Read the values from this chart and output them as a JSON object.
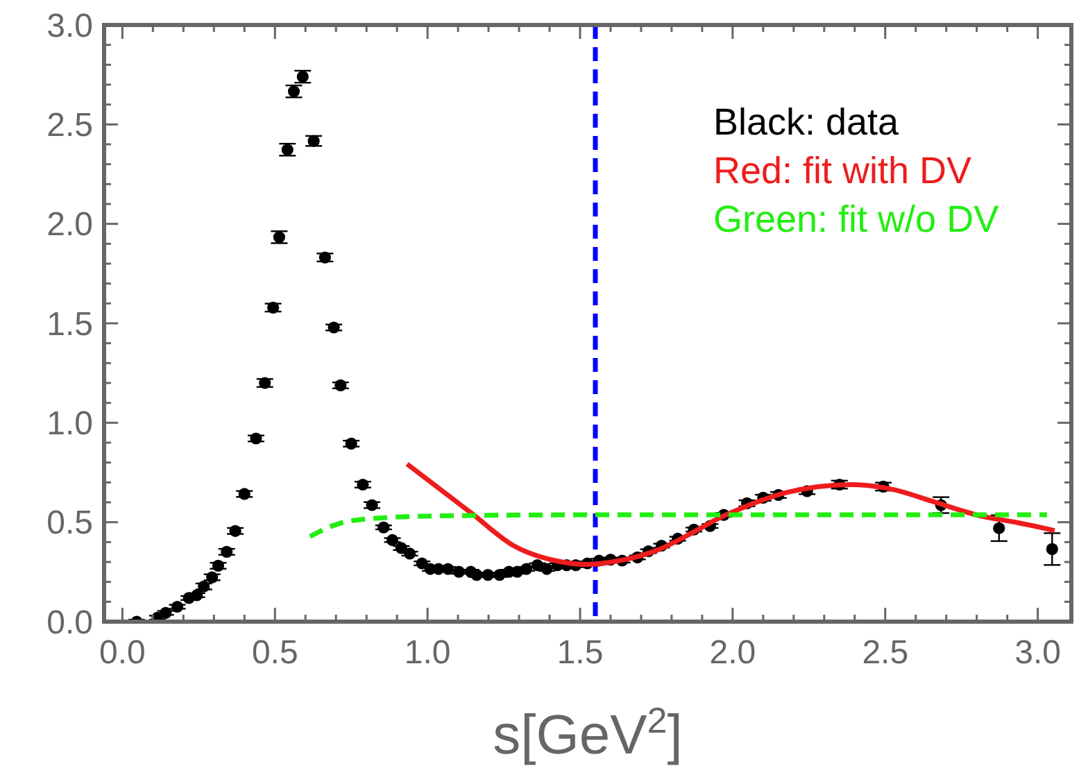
{
  "chart_data": {
    "type": "scatter",
    "xlabel": "s[GeV$^{2}$]",
    "xlim": [
      -0.06,
      3.11
    ],
    "ylim": [
      0,
      3
    ],
    "xticks": [
      {
        "value": 0,
        "label": "0.0"
      },
      {
        "value": 0.1,
        "label": null
      },
      {
        "value": 0.2,
        "label": null
      },
      {
        "value": 0.3,
        "label": null
      },
      {
        "value": 0.4,
        "label": null
      },
      {
        "value": 0.5,
        "label": "0.5"
      },
      {
        "value": 0.6,
        "label": null
      },
      {
        "value": 0.7,
        "label": null
      },
      {
        "value": 0.8,
        "label": null
      },
      {
        "value": 0.9,
        "label": null
      },
      {
        "value": 1,
        "label": "1.0"
      },
      {
        "value": 1.1,
        "label": null
      },
      {
        "value": 1.2,
        "label": null
      },
      {
        "value": 1.3,
        "label": null
      },
      {
        "value": 1.4,
        "label": null
      },
      {
        "value": 1.5,
        "label": "1.5"
      },
      {
        "value": 1.6,
        "label": null
      },
      {
        "value": 1.7,
        "label": null
      },
      {
        "value": 1.8,
        "label": null
      },
      {
        "value": 1.9,
        "label": null
      },
      {
        "value": 2,
        "label": "2.0"
      },
      {
        "value": 2.1,
        "label": null
      },
      {
        "value": 2.2,
        "label": null
      },
      {
        "value": 2.3,
        "label": null
      },
      {
        "value": 2.4,
        "label": null
      },
      {
        "value": 2.5,
        "label": "2.5"
      },
      {
        "value": 2.6,
        "label": null
      },
      {
        "value": 2.7,
        "label": null
      },
      {
        "value": 2.8,
        "label": null
      },
      {
        "value": 2.9,
        "label": null
      },
      {
        "value": 3,
        "label": "3.0"
      }
    ],
    "yticks": [
      {
        "value": 0,
        "label": "0.0"
      },
      {
        "value": 0.1,
        "label": null
      },
      {
        "value": 0.2,
        "label": null
      },
      {
        "value": 0.3,
        "label": null
      },
      {
        "value": 0.4,
        "label": null
      },
      {
        "value": 0.5,
        "label": "0.5"
      },
      {
        "value": 0.6,
        "label": null
      },
      {
        "value": 0.7,
        "label": null
      },
      {
        "value": 0.8,
        "label": null
      },
      {
        "value": 0.9,
        "label": null
      },
      {
        "value": 1,
        "label": "1.0"
      },
      {
        "value": 1.1,
        "label": null
      },
      {
        "value": 1.2,
        "label": null
      },
      {
        "value": 1.3,
        "label": null
      },
      {
        "value": 1.4,
        "label": null
      },
      {
        "value": 1.5,
        "label": "1.5"
      },
      {
        "value": 1.6,
        "label": null
      },
      {
        "value": 1.7,
        "label": null
      },
      {
        "value": 1.8,
        "label": null
      },
      {
        "value": 1.9,
        "label": null
      },
      {
        "value": 2,
        "label": "2.0"
      },
      {
        "value": 2.1,
        "label": null
      },
      {
        "value": 2.2,
        "label": null
      },
      {
        "value": 2.3,
        "label": null
      },
      {
        "value": 2.4,
        "label": null
      },
      {
        "value": 2.5,
        "label": "2.5"
      },
      {
        "value": 2.6,
        "label": null
      },
      {
        "value": 2.7,
        "label": null
      },
      {
        "value": 2.8,
        "label": null
      },
      {
        "value": 2.9,
        "label": null
      },
      {
        "value": 3,
        "label": "3.0"
      }
    ],
    "legend": "top right",
    "ref_lines": [
      {
        "axis": "x",
        "value": 1.55,
        "label": null,
        "color": "#0000ff",
        "line_style": "dashed"
      }
    ],
    "series": [
      {
        "name": "Black: data",
        "color": "#000000",
        "marker": "circle",
        "x": [
          0.047,
          0.115,
          0.142,
          0.18,
          0.218,
          0.244,
          0.267,
          0.294,
          0.314,
          0.342,
          0.37,
          0.4,
          0.438,
          0.467,
          0.494,
          0.514,
          0.541,
          0.562,
          0.591,
          0.627,
          0.664,
          0.693,
          0.715,
          0.75,
          0.788,
          0.818,
          0.856,
          0.885,
          0.914,
          0.942,
          0.982,
          1.009,
          1.036,
          1.067,
          1.103,
          1.142,
          1.161,
          1.198,
          1.236,
          1.267,
          1.294,
          1.324,
          1.36,
          1.391,
          1.426,
          1.456,
          1.486,
          1.524,
          1.562,
          1.6,
          1.638,
          1.688,
          1.724,
          1.767,
          1.82,
          1.873,
          1.926,
          1.971,
          2.047,
          2.1,
          2.15,
          2.244,
          2.35,
          2.494,
          2.683,
          2.873,
          3.047
        ],
        "values": [
          0,
          0.02,
          0.044,
          0.075,
          0.119,
          0.133,
          0.177,
          0.223,
          0.281,
          0.351,
          0.456,
          0.642,
          0.921,
          1.2,
          1.579,
          1.933,
          2.373,
          2.666,
          2.74,
          2.417,
          1.831,
          1.479,
          1.188,
          0.895,
          0.689,
          0.586,
          0.474,
          0.41,
          0.37,
          0.342,
          0.293,
          0.265,
          0.265,
          0.265,
          0.251,
          0.251,
          0.235,
          0.235,
          0.235,
          0.251,
          0.251,
          0.265,
          0.284,
          0.265,
          0.284,
          0.284,
          0.284,
          0.293,
          0.307,
          0.312,
          0.307,
          0.323,
          0.354,
          0.382,
          0.417,
          0.463,
          0.481,
          0.537,
          0.595,
          0.623,
          0.637,
          0.656,
          0.689,
          0.679,
          0.586,
          0.47,
          0.365
        ],
        "errors": [
          0.01,
          0.01,
          0.01,
          0.01,
          0.01,
          0.01,
          0.015,
          0.015,
          0.015,
          0.015,
          0.015,
          0.015,
          0.015,
          0.02,
          0.02,
          0.03,
          0.03,
          0.03,
          0.03,
          0.025,
          0.02,
          0.015,
          0.015,
          0.015,
          0.015,
          0.015,
          0.01,
          0.01,
          0.01,
          0.01,
          0.01,
          0.01,
          0.01,
          0.01,
          0.01,
          0.01,
          0.01,
          0.01,
          0.01,
          0.01,
          0.01,
          0.01,
          0.01,
          0.01,
          0.01,
          0.01,
          0.01,
          0.01,
          0.01,
          0.01,
          0.01,
          0.01,
          0.01,
          0.01,
          0.01,
          0.01,
          0.01,
          0.01,
          0.015,
          0.015,
          0.015,
          0.015,
          0.02,
          0.02,
          0.04,
          0.065,
          0.08
        ]
      },
      {
        "name": "Red: fit with DV",
        "color": "#ee1c1c",
        "type": "line",
        "line_style": "solid",
        "x": [
          0.933,
          1.145,
          1.282,
          1.418,
          1.524,
          1.63,
          1.751,
          1.873,
          1.956,
          2.024,
          2.176,
          2.388,
          2.524,
          2.66,
          2.812,
          2.933,
          3.055
        ],
        "values": [
          0.793,
          0.544,
          0.382,
          0.307,
          0.288,
          0.307,
          0.358,
          0.451,
          0.521,
          0.567,
          0.649,
          0.689,
          0.665,
          0.602,
          0.532,
          0.498,
          0.458
        ]
      },
      {
        "name": "Green: fit w/o DV",
        "color": "#22ee11",
        "type": "line",
        "line_style": "dashed",
        "x": [
          0.615,
          0.721,
          0.842,
          1.055,
          1.5,
          2.0,
          2.5,
          3.03
        ],
        "values": [
          0.428,
          0.498,
          0.521,
          0.532,
          0.537,
          0.537,
          0.537,
          0.537
        ]
      }
    ]
  }
}
